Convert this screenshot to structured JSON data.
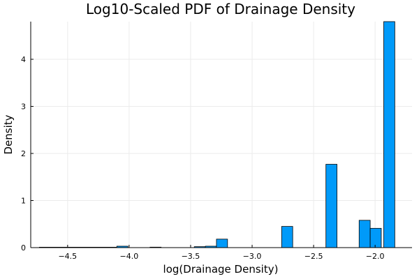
{
  "chart_data": {
    "type": "bar",
    "title": "Log10-Scaled PDF of Drainage Density",
    "xlabel": "log(Drainage Density)",
    "ylabel": "Density",
    "xlim": [
      -4.8,
      -1.7
    ],
    "ylim": [
      0,
      4.8
    ],
    "x_ticks": [
      -4.5,
      -4.0,
      -3.5,
      -3.0,
      -2.5,
      -2.0
    ],
    "x_tick_labels": [
      "−4.5",
      "−4.0",
      "−3.5",
      "−3.0",
      "−2.5",
      "−2.0"
    ],
    "y_ticks": [
      0,
      1,
      2,
      3,
      4
    ],
    "y_tick_labels": [
      "0",
      "1",
      "2",
      "3",
      "4"
    ],
    "grid": true,
    "legend": "none",
    "bar_color": "#009AF9",
    "bins": [
      {
        "x0": -4.73,
        "x1": -4.64,
        "value": 0.003
      },
      {
        "x0": -4.64,
        "x1": -4.55,
        "value": 0.003
      },
      {
        "x0": -4.55,
        "x1": -4.46,
        "value": 0.003
      },
      {
        "x0": -4.46,
        "x1": -4.37,
        "value": 0.003
      },
      {
        "x0": -4.37,
        "x1": -4.28,
        "value": 0.003
      },
      {
        "x0": -4.28,
        "x1": -4.19,
        "value": 0.003
      },
      {
        "x0": -4.19,
        "x1": -4.1,
        "value": 0.003
      },
      {
        "x0": -4.1,
        "x1": -4.01,
        "value": 0.03
      },
      {
        "x0": -3.83,
        "x1": -3.74,
        "value": 0.01
      },
      {
        "x0": -3.47,
        "x1": -3.38,
        "value": 0.02
      },
      {
        "x0": -3.38,
        "x1": -3.29,
        "value": 0.03
      },
      {
        "x0": -3.29,
        "x1": -3.2,
        "value": 0.18
      },
      {
        "x0": -2.76,
        "x1": -2.67,
        "value": 0.45
      },
      {
        "x0": -2.4,
        "x1": -2.31,
        "value": 1.77
      },
      {
        "x0": -2.13,
        "x1": -2.04,
        "value": 0.58
      },
      {
        "x0": -2.04,
        "x1": -1.95,
        "value": 0.41
      },
      {
        "x0": -1.93,
        "x1": -1.84,
        "value": 4.8
      }
    ]
  }
}
